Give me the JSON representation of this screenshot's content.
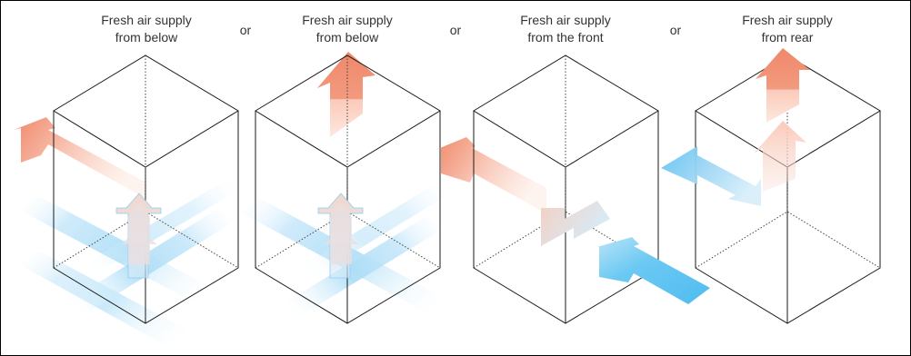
{
  "panels": [
    {
      "title_line1": "Fresh air supply",
      "title_line2": "from below"
    },
    {
      "title_line1": "Fresh air supply",
      "title_line2": "from below"
    },
    {
      "title_line1": "Fresh air supply",
      "title_line2": "from the front"
    },
    {
      "title_line1": "Fresh air supply",
      "title_line2": "from rear"
    }
  ],
  "separators": [
    "or",
    "or",
    "or"
  ],
  "colors": {
    "warm_air": "#f0886a",
    "warm_air_light": "#fbd3c4",
    "fresh_air": "#5ec3f2",
    "fresh_air_light": "#d3ecfa",
    "outline": "#1a1a1a"
  }
}
